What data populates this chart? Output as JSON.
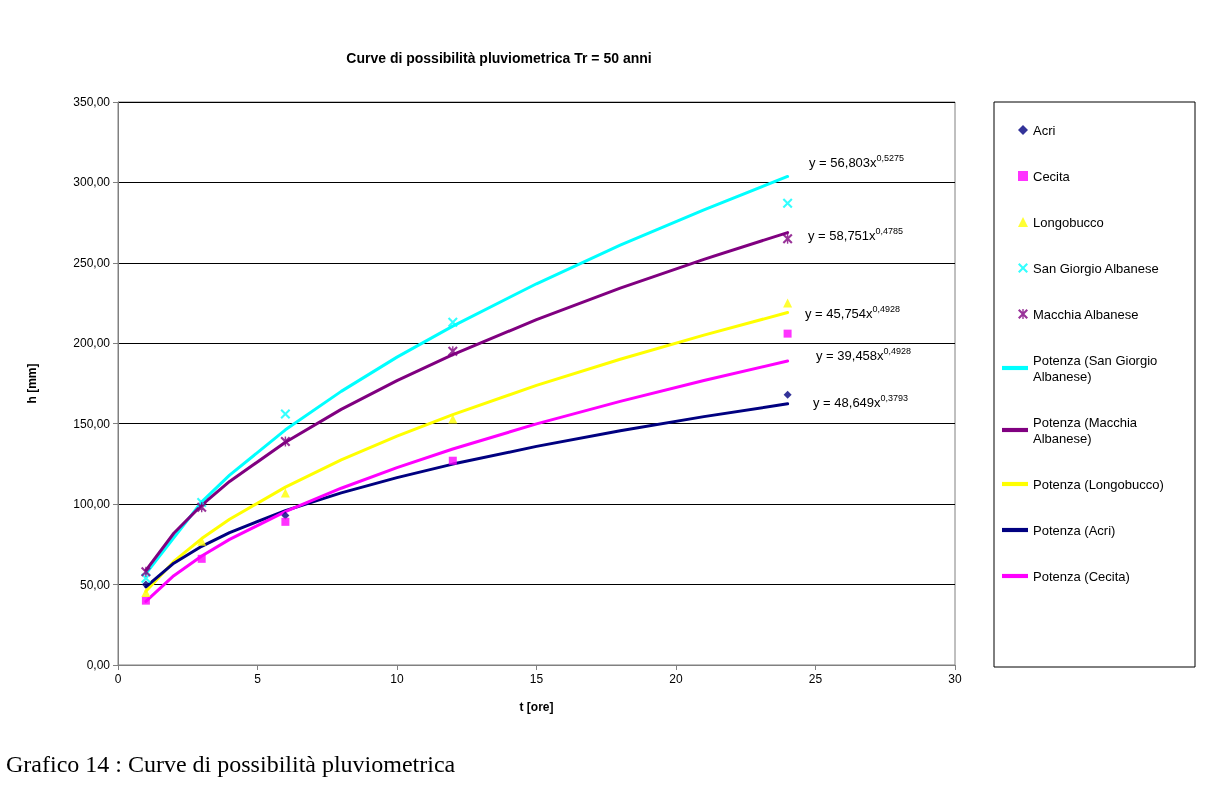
{
  "chart_data": {
    "type": "scatter",
    "title": "Curve di possibilità pluviometrica Tr = 50 anni",
    "xlabel": "t [ore]",
    "ylabel": "h [mm]",
    "xlim": [
      0,
      30
    ],
    "xticks": [
      0,
      5,
      10,
      15,
      20,
      25,
      30
    ],
    "ylim": [
      0,
      350
    ],
    "yticks": [
      {
        "value": 0,
        "label": "0,00"
      },
      {
        "value": 50,
        "label": "50,00"
      },
      {
        "value": 100,
        "label": "100,00"
      },
      {
        "value": 150,
        "label": "150,00"
      },
      {
        "value": 200,
        "label": "200,00"
      },
      {
        "value": 250,
        "label": "250,00"
      },
      {
        "value": 300,
        "label": "300,00"
      },
      {
        "value": 350,
        "label": "350,00"
      }
    ],
    "grid": "y",
    "legend": "right",
    "series": [
      {
        "name": "Acri",
        "marker": "diamond",
        "color": "#000080",
        "x": [
          1,
          3,
          6,
          12,
          24
        ],
        "values": [
          50,
          null,
          93,
          null,
          168
        ]
      },
      {
        "name": "Cecita",
        "marker": "square",
        "color": "#ff00ff",
        "x": [
          1,
          3,
          6,
          12,
          24
        ],
        "values": [
          40,
          66,
          89,
          127,
          206
        ]
      },
      {
        "name": "Longobucco",
        "marker": "triangle",
        "color": "#ffff00",
        "x": [
          1,
          3,
          6,
          12,
          24
        ],
        "values": [
          45,
          77,
          107,
          153,
          225
        ]
      },
      {
        "name": "San Giorgio Albanese",
        "marker": "cross",
        "color": "#00ffff",
        "x": [
          1,
          3,
          6,
          12,
          24
        ],
        "values": [
          54,
          101,
          156,
          213,
          287
        ]
      },
      {
        "name": "Macchia Albanese",
        "marker": "star",
        "color": "#800080",
        "x": [
          1,
          3,
          6,
          12,
          24
        ],
        "values": [
          58,
          98,
          139,
          195,
          265
        ]
      },
      {
        "name": "Potenza (San Giorgio Albanese)",
        "type": "line",
        "marker": "none",
        "color": "#00ffff",
        "x": [
          1,
          3,
          4,
          6,
          8,
          10,
          12,
          15,
          18,
          21,
          24
        ],
        "values": [
          56.8,
          101.4,
          118.0,
          146.2,
          170.1,
          191.4,
          210.7,
          237.0,
          261.0,
          283.0,
          303.7
        ]
      },
      {
        "name": "Potenza (Macchia Albanese)",
        "type": "line",
        "marker": "none",
        "color": "#800080",
        "x": [
          1,
          2,
          3,
          4,
          6,
          8,
          10,
          12,
          15,
          18,
          21,
          24
        ],
        "values": [
          58.8,
          81.9,
          99.4,
          114.1,
          138.5,
          158.9,
          176.8,
          192.9,
          214.7,
          234.3,
          252.2,
          268.8
        ]
      },
      {
        "name": "Potenza (Longobucco)",
        "type": "line",
        "marker": "none",
        "color": "#ffff00",
        "x": [
          1,
          2,
          3,
          4,
          6,
          8,
          10,
          12,
          15,
          18,
          21,
          24
        ],
        "values": [
          45.8,
          64.4,
          78.6,
          90.6,
          110.6,
          127.5,
          142.3,
          155.7,
          173.8,
          190.1,
          205.1,
          219.1
        ]
      },
      {
        "name": "Potenza (Acri)",
        "type": "line",
        "marker": "none",
        "color": "#000080",
        "x": [
          1,
          2,
          3,
          4,
          6,
          8,
          10,
          12,
          15,
          18,
          21,
          24
        ],
        "values": [
          48.6,
          63.3,
          73.8,
          82.3,
          96.0,
          107.0,
          116.5,
          124.9,
          135.9,
          145.6,
          154.4,
          162.4
        ]
      },
      {
        "name": "Potenza (Cecita)",
        "type": "line",
        "marker": "none",
        "color": "#ff00ff",
        "x": [
          1,
          2,
          3,
          4,
          6,
          8,
          10,
          12,
          15,
          18,
          21,
          24
        ],
        "values": [
          39.5,
          55.5,
          67.8,
          78.1,
          95.4,
          109.9,
          122.7,
          134.3,
          149.9,
          163.9,
          176.9,
          189.0
        ]
      }
    ],
    "annotations": [
      "y = 56,803x$^{0,5275}$",
      "y = 58,751x$^{0,4785}$",
      "y = 45,754x$^{0,4928}$",
      "y = 39,458x$^{0,4928}$",
      "y = 48,649x$^{0,3793}$",
      "Grafico 14 : Curve di possibilità pluviometrica"
    ]
  }
}
